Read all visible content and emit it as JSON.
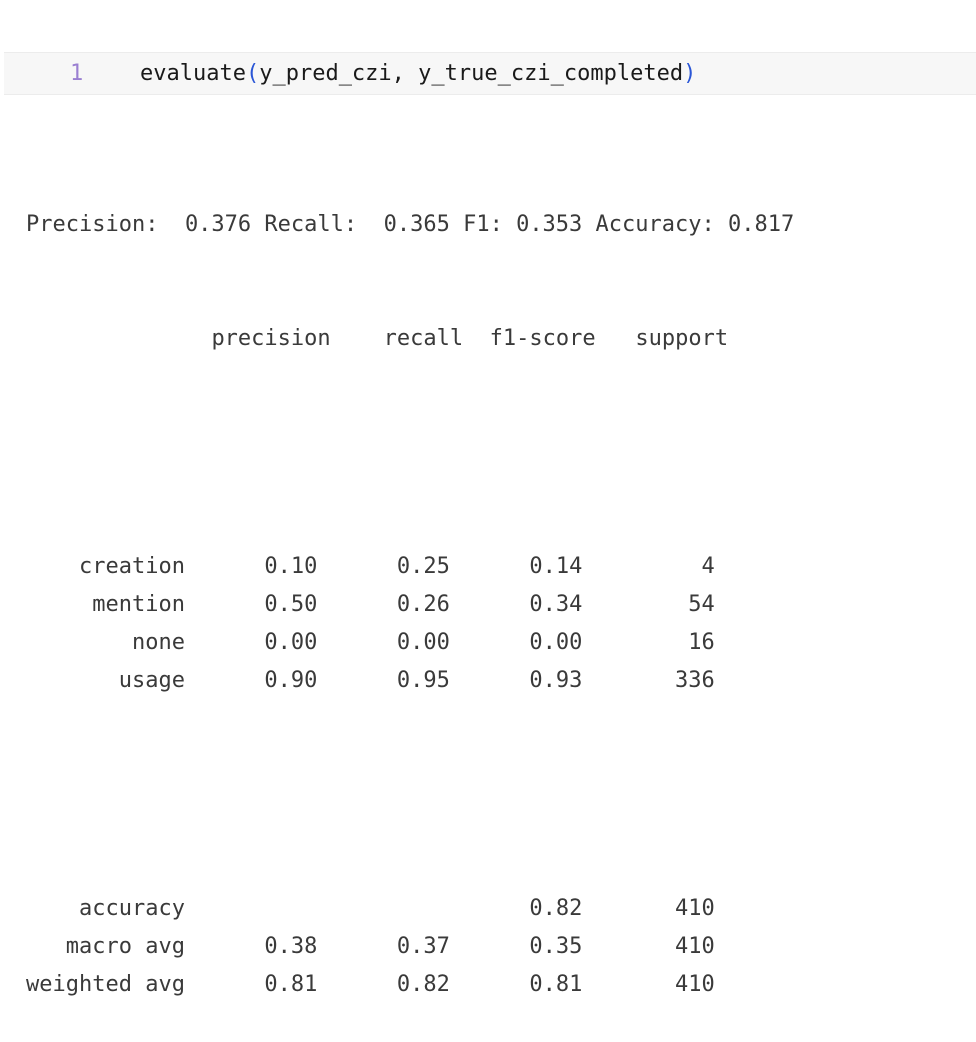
{
  "cell": {
    "line_number": "1",
    "code": {
      "func": "evaluate",
      "open_paren": "(",
      "args": "y_pred_czi, y_true_czi_completed",
      "close_paren": ")"
    }
  },
  "output": {
    "summary": "Precision:  0.376 Recall:  0.365 F1: 0.353 Accuracy: 0.817",
    "header": {
      "precision": "precision",
      "recall": "recall",
      "f1": "f1-score",
      "support": "support"
    },
    "classes": [
      {
        "label": "creation",
        "precision": "0.10",
        "recall": "0.25",
        "f1": "0.14",
        "support": "4"
      },
      {
        "label": "mention",
        "precision": "0.50",
        "recall": "0.26",
        "f1": "0.34",
        "support": "54"
      },
      {
        "label": "none",
        "precision": "0.00",
        "recall": "0.00",
        "f1": "0.00",
        "support": "16"
      },
      {
        "label": "usage",
        "precision": "0.90",
        "recall": "0.95",
        "f1": "0.93",
        "support": "336"
      }
    ],
    "averages": [
      {
        "label": "accuracy",
        "precision": "",
        "recall": "",
        "f1": "0.82",
        "support": "410"
      },
      {
        "label": "macro avg",
        "precision": "0.38",
        "recall": "0.37",
        "f1": "0.35",
        "support": "410"
      },
      {
        "label": "weighted avg",
        "precision": "0.81",
        "recall": "0.82",
        "f1": "0.81",
        "support": "410"
      }
    ]
  }
}
